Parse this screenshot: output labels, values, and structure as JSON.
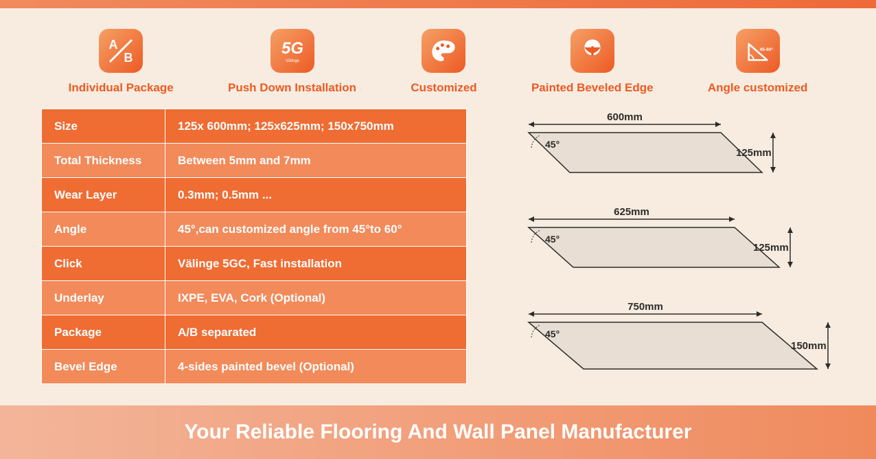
{
  "colors": {
    "accent": "#ed5a24",
    "row_odd": "#ef6c33",
    "row_even": "#f28a5a",
    "background": "#f7ecdf",
    "diagram_fill": "#e8ded3",
    "diagram_stroke": "#2b2b2b"
  },
  "features": [
    {
      "icon": "ab",
      "label": "Individual Package"
    },
    {
      "icon": "5g",
      "label": "Push Down Installation"
    },
    {
      "icon": "palette",
      "label": "Customized"
    },
    {
      "icon": "bevel",
      "label": "Painted Beveled Edge"
    },
    {
      "icon": "angle",
      "label": "Angle customized"
    }
  ],
  "spec_table": {
    "rows": [
      {
        "label": "Size",
        "value": "125x 600mm; 125x625mm; 150x750mm"
      },
      {
        "label": "Total Thickness",
        "value": "Between 5mm and 7mm"
      },
      {
        "label": "Wear Layer",
        "value": "0.3mm; 0.5mm ..."
      },
      {
        "label": "Angle",
        "value": "45°,can customized angle from 45°to 60°"
      },
      {
        "label": "Click",
        "value": "Välinge 5GC, Fast installation"
      },
      {
        "label": "Underlay",
        "value": "IXPE, EVA, Cork (Optional)"
      },
      {
        "label": "Package",
        "value": "A/B separated"
      },
      {
        "label": "Bevel Edge",
        "value": "4-sides painted bevel (Optional)"
      }
    ]
  },
  "diagrams": [
    {
      "width_label": "600mm",
      "height_label": "125mm",
      "angle_label": "45°",
      "skew": 60,
      "rel_width": 280,
      "rel_height": 58
    },
    {
      "width_label": "625mm",
      "height_label": "125mm",
      "angle_label": "45°",
      "skew": 65,
      "rel_width": 300,
      "rel_height": 58
    },
    {
      "width_label": "750mm",
      "height_label": "150mm",
      "angle_label": "45°",
      "skew": 80,
      "rel_width": 340,
      "rel_height": 68
    }
  ],
  "banner_text": "Your Reliable Flooring And Wall Panel Manufacturer"
}
